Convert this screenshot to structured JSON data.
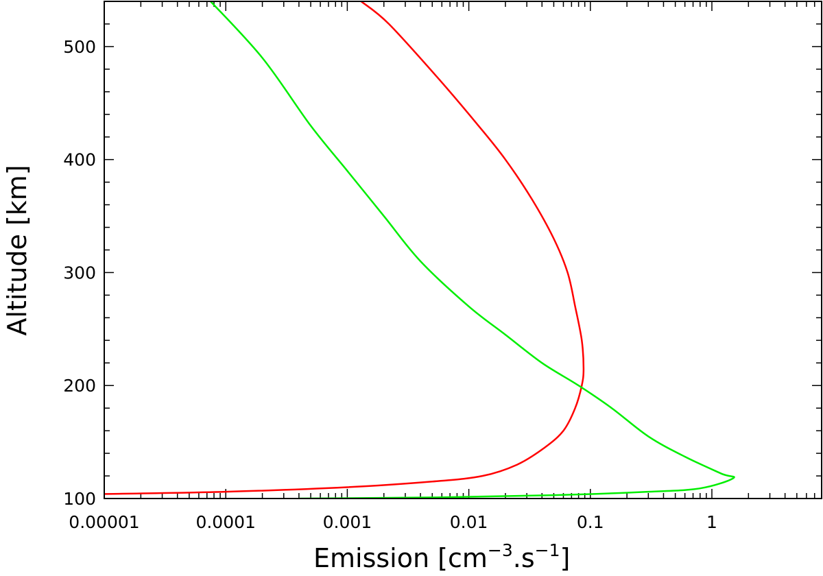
{
  "chart_data": {
    "type": "line",
    "xscale": "log",
    "xlim": [
      1e-05,
      8
    ],
    "ylim": [
      100,
      540
    ],
    "x_major_ticks": [
      1e-05,
      0.0001,
      0.001,
      0.01,
      0.1,
      1
    ],
    "x_tick_labels": [
      "0.00001",
      "0.0001",
      "0.001",
      "0.01",
      "0.1",
      "1"
    ],
    "y_major_ticks": [
      100,
      200,
      300,
      400,
      500
    ],
    "y_tick_labels": [
      "100",
      "200",
      "300",
      "400",
      "500"
    ],
    "y_minor_step": 20,
    "xlabel": {
      "base": "Emission [cm",
      "exp1": "−3",
      "mid": ".s",
      "exp2": "−1",
      "end": "]"
    },
    "ylabel": "Altitude [km]",
    "grid": false,
    "series": [
      {
        "color": "#ff0000",
        "points": [
          [
            1e-05,
            104
          ],
          [
            0.0001,
            106
          ],
          [
            0.001,
            110
          ],
          [
            0.005,
            115
          ],
          [
            0.013,
            120
          ],
          [
            0.025,
            130
          ],
          [
            0.042,
            145
          ],
          [
            0.06,
            160
          ],
          [
            0.075,
            180
          ],
          [
            0.085,
            200
          ],
          [
            0.088,
            215
          ],
          [
            0.085,
            240
          ],
          [
            0.075,
            270
          ],
          [
            0.065,
            300
          ],
          [
            0.05,
            330
          ],
          [
            0.033,
            365
          ],
          [
            0.02,
            400
          ],
          [
            0.012,
            430
          ],
          [
            0.0058,
            470
          ],
          [
            0.0022,
            520
          ],
          [
            0.0013,
            540
          ]
        ]
      },
      {
        "color": "#00ee00",
        "points": [
          [
            0.0004,
            100
          ],
          [
            0.005,
            101
          ],
          [
            0.05,
            103
          ],
          [
            0.3,
            106
          ],
          [
            0.8,
            109
          ],
          [
            1.5,
            118
          ],
          [
            1.2,
            122
          ],
          [
            0.6,
            137
          ],
          [
            0.3,
            155
          ],
          [
            0.15,
            180
          ],
          [
            0.08,
            200
          ],
          [
            0.04,
            220
          ],
          [
            0.02,
            245
          ],
          [
            0.01,
            270
          ],
          [
            0.004,
            310
          ],
          [
            0.002,
            350
          ],
          [
            0.001,
            390
          ],
          [
            0.0005,
            430
          ],
          [
            0.0002,
            490
          ],
          [
            7.5e-05,
            540
          ]
        ]
      }
    ]
  }
}
